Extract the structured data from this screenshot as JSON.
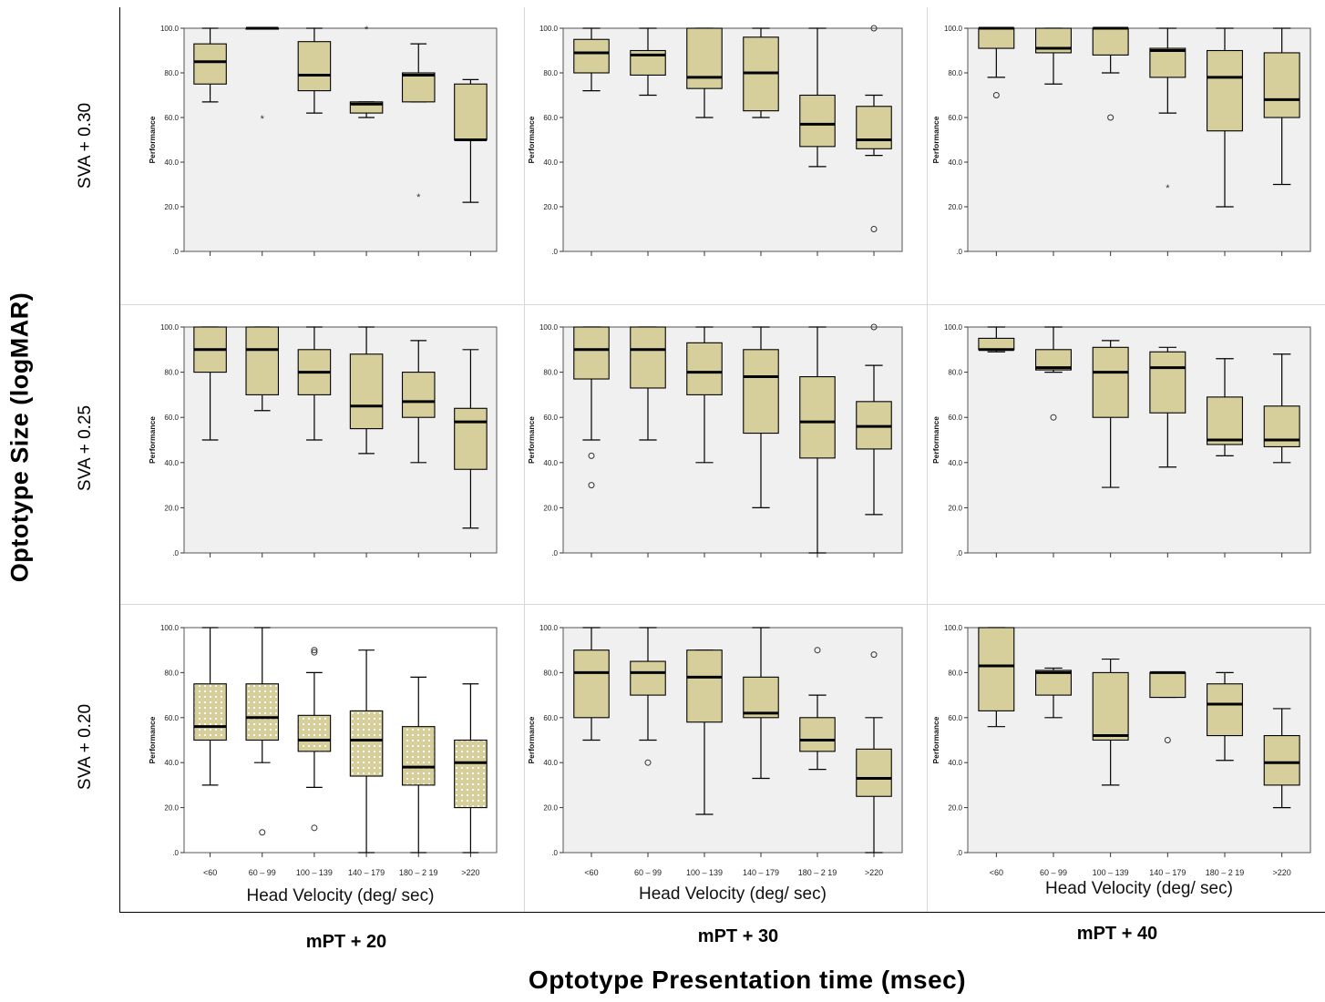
{
  "chart_data": {
    "type": "boxplot-grid",
    "title": "",
    "ylabel": "Optotype Size (logMAR)",
    "xlabel": "Optotype Presentation time (msec)",
    "columns": [
      "mPT + 20",
      "mPT + 30",
      "mPT + 40"
    ],
    "rows": [
      "SVA + 0.30",
      "SVA + 0.25",
      "SVA + 0.20"
    ],
    "panel_xlabel": [
      "Head Velocity (deg/ sec)",
      "Head Velocity  (deg/ sec)",
      "Head Velocity (deg/ sec)"
    ],
    "panel_ylabel": "Performance",
    "categories": [
      "<60",
      "60 – 99",
      "100 – 139",
      "140 – 179",
      "180 – 2 19",
      ">220"
    ],
    "ytick_labels": [
      ".0",
      "20.0",
      "40.0",
      "60.0",
      "80.0",
      "100.0"
    ],
    "ylim": [
      0,
      100
    ],
    "box_color": "#d6cf9c",
    "plot_bg": "#f0f0f0",
    "panels": [
      {
        "row": 0,
        "col": 0,
        "boxes": [
          {
            "cat": "<60",
            "whislo": 67,
            "q1": 75,
            "med": 85,
            "q3": 93,
            "whishi": 100,
            "outliers": []
          },
          {
            "cat": "60 – 99",
            "whislo": 100,
            "q1": 100,
            "med": 100,
            "q3": 100,
            "whishi": 100,
            "outliers": [],
            "extremes": [
              60
            ]
          },
          {
            "cat": "100 – 139",
            "whislo": 62,
            "q1": 72,
            "med": 79,
            "q3": 94,
            "whishi": 100,
            "outliers": []
          },
          {
            "cat": "140 – 179",
            "whislo": 60,
            "q1": 62,
            "med": 66,
            "q3": 67,
            "whishi": 67,
            "outliers": [],
            "extremes": [
              100
            ]
          },
          {
            "cat": "180 – 2 19",
            "whislo": 67,
            "q1": 67,
            "med": 79,
            "q3": 80,
            "whishi": 93,
            "outliers": [],
            "extremes": [
              25
            ]
          },
          {
            "cat": ">220",
            "whislo": 22,
            "q1": 50,
            "med": 50,
            "q3": 75,
            "whishi": 77,
            "outliers": []
          }
        ]
      },
      {
        "row": 0,
        "col": 1,
        "boxes": [
          {
            "cat": "<60",
            "whislo": 72,
            "q1": 80,
            "med": 89,
            "q3": 95,
            "whishi": 100,
            "outliers": []
          },
          {
            "cat": "60 – 99",
            "whislo": 70,
            "q1": 79,
            "med": 88,
            "q3": 90,
            "whishi": 100,
            "outliers": []
          },
          {
            "cat": "100 – 139",
            "whislo": 60,
            "q1": 73,
            "med": 78,
            "q3": 100,
            "whishi": 100,
            "outliers": []
          },
          {
            "cat": "140 – 179",
            "whislo": 60,
            "q1": 63,
            "med": 80,
            "q3": 96,
            "whishi": 100,
            "outliers": []
          },
          {
            "cat": "180 – 2 19",
            "whislo": 38,
            "q1": 47,
            "med": 57,
            "q3": 70,
            "whishi": 100,
            "outliers": []
          },
          {
            "cat": ">220",
            "whislo": 43,
            "q1": 46,
            "med": 50,
            "q3": 65,
            "whishi": 70,
            "outliers": [
              10,
              100
            ]
          }
        ]
      },
      {
        "row": 0,
        "col": 2,
        "boxes": [
          {
            "cat": "<60",
            "whislo": 78,
            "q1": 91,
            "med": 100,
            "q3": 100,
            "whishi": 100,
            "outliers": [
              70
            ]
          },
          {
            "cat": "60 – 99",
            "whislo": 75,
            "q1": 89,
            "med": 91,
            "q3": 100,
            "whishi": 100,
            "outliers": []
          },
          {
            "cat": "100 – 139",
            "whislo": 80,
            "q1": 88,
            "med": 100,
            "q3": 100,
            "whishi": 100,
            "outliers": [
              60
            ]
          },
          {
            "cat": "140 – 179",
            "whislo": 62,
            "q1": 78,
            "med": 90,
            "q3": 91,
            "whishi": 100,
            "outliers": [],
            "extremes": [
              29
            ]
          },
          {
            "cat": "180 – 2 19",
            "whislo": 20,
            "q1": 54,
            "med": 78,
            "q3": 90,
            "whishi": 100,
            "outliers": []
          },
          {
            "cat": ">220",
            "whislo": 30,
            "q1": 60,
            "med": 68,
            "q3": 89,
            "whishi": 100,
            "outliers": []
          }
        ]
      },
      {
        "row": 1,
        "col": 0,
        "boxes": [
          {
            "cat": "<60",
            "whislo": 50,
            "q1": 80,
            "med": 90,
            "q3": 100,
            "whishi": 100,
            "outliers": []
          },
          {
            "cat": "60 – 99",
            "whislo": 63,
            "q1": 70,
            "med": 90,
            "q3": 100,
            "whishi": 100,
            "outliers": []
          },
          {
            "cat": "100 – 139",
            "whislo": 50,
            "q1": 70,
            "med": 80,
            "q3": 90,
            "whishi": 100,
            "outliers": []
          },
          {
            "cat": "140 – 179",
            "whislo": 44,
            "q1": 55,
            "med": 65,
            "q3": 88,
            "whishi": 100,
            "outliers": []
          },
          {
            "cat": "180 – 2 19",
            "whislo": 40,
            "q1": 60,
            "med": 67,
            "q3": 80,
            "whishi": 94,
            "outliers": []
          },
          {
            "cat": ">220",
            "whislo": 11,
            "q1": 37,
            "med": 58,
            "q3": 64,
            "whishi": 90,
            "outliers": []
          }
        ]
      },
      {
        "row": 1,
        "col": 1,
        "boxes": [
          {
            "cat": "<60",
            "whislo": 50,
            "q1": 77,
            "med": 90,
            "q3": 100,
            "whishi": 100,
            "outliers": [
              43,
              30
            ]
          },
          {
            "cat": "60 – 99",
            "whislo": 50,
            "q1": 73,
            "med": 90,
            "q3": 100,
            "whishi": 100,
            "outliers": []
          },
          {
            "cat": "100 – 139",
            "whislo": 40,
            "q1": 70,
            "med": 80,
            "q3": 93,
            "whishi": 100,
            "outliers": []
          },
          {
            "cat": "140 – 179",
            "whislo": 20,
            "q1": 53,
            "med": 78,
            "q3": 90,
            "whishi": 100,
            "outliers": []
          },
          {
            "cat": "180 – 2 19",
            "whislo": 0,
            "q1": 42,
            "med": 58,
            "q3": 78,
            "whishi": 100,
            "outliers": []
          },
          {
            "cat": ">220",
            "whislo": 17,
            "q1": 46,
            "med": 56,
            "q3": 67,
            "whishi": 83,
            "outliers": [
              100
            ]
          }
        ]
      },
      {
        "row": 1,
        "col": 2,
        "boxes": [
          {
            "cat": "<60",
            "whislo": 89,
            "q1": 90,
            "med": 90,
            "q3": 95,
            "whishi": 100,
            "outliers": []
          },
          {
            "cat": "60 – 99",
            "whislo": 80,
            "q1": 81,
            "med": 82,
            "q3": 90,
            "whishi": 100,
            "outliers": [
              60
            ]
          },
          {
            "cat": "100 – 139",
            "whislo": 29,
            "q1": 60,
            "med": 80,
            "q3": 91,
            "whishi": 94,
            "outliers": []
          },
          {
            "cat": "140 – 179",
            "whislo": 38,
            "q1": 62,
            "med": 82,
            "q3": 89,
            "whishi": 91,
            "outliers": []
          },
          {
            "cat": "180 – 2 19",
            "whislo": 43,
            "q1": 48,
            "med": 50,
            "q3": 69,
            "whishi": 86,
            "outliers": []
          },
          {
            "cat": ">220",
            "whislo": 40,
            "q1": 47,
            "med": 50,
            "q3": 65,
            "whishi": 88,
            "outliers": []
          }
        ]
      },
      {
        "row": 2,
        "col": 0,
        "boxes": [
          {
            "cat": "<60",
            "whislo": 30,
            "q1": 50,
            "med": 56,
            "q3": 75,
            "whishi": 100,
            "outliers": []
          },
          {
            "cat": "60 – 99",
            "whislo": 40,
            "q1": 50,
            "med": 60,
            "q3": 75,
            "whishi": 100,
            "outliers": [
              9
            ]
          },
          {
            "cat": "100 – 139",
            "whislo": 29,
            "q1": 45,
            "med": 50,
            "q3": 61,
            "whishi": 80,
            "outliers": [
              11,
              89,
              90
            ]
          },
          {
            "cat": "140 – 179",
            "whislo": 0,
            "q1": 34,
            "med": 50,
            "q3": 63,
            "whishi": 90,
            "outliers": []
          },
          {
            "cat": "180 – 2 19",
            "whislo": 0,
            "q1": 30,
            "med": 38,
            "q3": 56,
            "whishi": 78,
            "outliers": []
          },
          {
            "cat": ">220",
            "whislo": 0,
            "q1": 20,
            "med": 40,
            "q3": 50,
            "whishi": 75,
            "outliers": []
          }
        ]
      },
      {
        "row": 2,
        "col": 1,
        "boxes": [
          {
            "cat": "<60",
            "whislo": 50,
            "q1": 60,
            "med": 80,
            "q3": 90,
            "whishi": 100,
            "outliers": []
          },
          {
            "cat": "60 – 99",
            "whislo": 50,
            "q1": 70,
            "med": 80,
            "q3": 85,
            "whishi": 100,
            "outliers": [
              40
            ]
          },
          {
            "cat": "100 – 139",
            "whislo": 17,
            "q1": 58,
            "med": 78,
            "q3": 90,
            "whishi": 90,
            "outliers": []
          },
          {
            "cat": "140 – 179",
            "whislo": 33,
            "q1": 60,
            "med": 62,
            "q3": 78,
            "whishi": 100,
            "outliers": []
          },
          {
            "cat": "180 – 2 19",
            "whislo": 37,
            "q1": 45,
            "med": 50,
            "q3": 60,
            "whishi": 70,
            "outliers": [
              90
            ]
          },
          {
            "cat": ">220",
            "whislo": 0,
            "q1": 25,
            "med": 33,
            "q3": 46,
            "whishi": 60,
            "outliers": [
              88
            ]
          }
        ]
      },
      {
        "row": 2,
        "col": 2,
        "boxes": [
          {
            "cat": "<60",
            "whislo": 56,
            "q1": 63,
            "med": 83,
            "q3": 100,
            "whishi": 100,
            "outliers": []
          },
          {
            "cat": "60 – 99",
            "whislo": 60,
            "q1": 70,
            "med": 80,
            "q3": 81,
            "whishi": 82,
            "outliers": []
          },
          {
            "cat": "100 – 139",
            "whislo": 30,
            "q1": 50,
            "med": 52,
            "q3": 80,
            "whishi": 86,
            "outliers": []
          },
          {
            "cat": "140 – 179",
            "whislo": 69,
            "q1": 69,
            "med": 80,
            "q3": 80,
            "whishi": 80,
            "outliers": [
              50
            ]
          },
          {
            "cat": "180 – 2 19",
            "whislo": 41,
            "q1": 52,
            "med": 66,
            "q3": 75,
            "whishi": 80,
            "outliers": []
          },
          {
            "cat": ">220",
            "whislo": 20,
            "q1": 30,
            "med": 40,
            "q3": 52,
            "whishi": 64,
            "outliers": []
          }
        ]
      }
    ]
  }
}
